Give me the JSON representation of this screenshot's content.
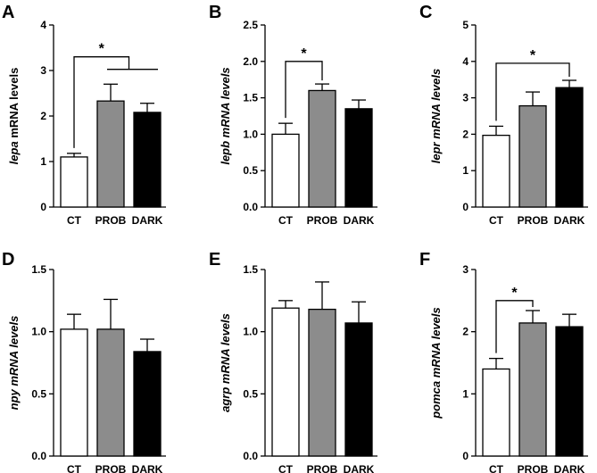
{
  "chart_data": [
    {
      "panel": "A",
      "type": "bar",
      "ylabel_italic": "lepa",
      "ylabel_rest": " mRNA levels",
      "categories": [
        "CT",
        "PROB",
        "DARK"
      ],
      "values": [
        1.1,
        2.33,
        2.08
      ],
      "errors": [
        0.08,
        0.37,
        0.2
      ],
      "colors": [
        "#ffffff",
        "#8c8c8c",
        "#000000"
      ],
      "ylim": [
        0,
        4
      ],
      "yticks": [
        "0",
        "1",
        "2",
        "3",
        "4"
      ],
      "significance": [
        {
          "type": "one-vs-group",
          "from": 0,
          "to": [
            1,
            2
          ],
          "y": 3.3,
          "label": "*"
        }
      ]
    },
    {
      "panel": "B",
      "type": "bar",
      "ylabel_italic": "lepb mRNA levels",
      "ylabel_rest": "",
      "categories": [
        "CT",
        "PROB",
        "DARK"
      ],
      "values": [
        1.0,
        1.6,
        1.35
      ],
      "errors": [
        0.15,
        0.09,
        0.12
      ],
      "colors": [
        "#ffffff",
        "#8c8c8c",
        "#000000"
      ],
      "ylim": [
        0,
        2.5
      ],
      "yticks": [
        "0.0",
        "0.5",
        "1.0",
        "1.5",
        "2.0",
        "2.5"
      ],
      "significance": [
        {
          "type": "pair",
          "from": 0,
          "to": 1,
          "y": 2.0,
          "label": "*"
        }
      ]
    },
    {
      "panel": "C",
      "type": "bar",
      "ylabel_italic": "lepr mRNA levels",
      "ylabel_rest": "",
      "categories": [
        "CT",
        "PROB",
        "DARK"
      ],
      "values": [
        1.97,
        2.78,
        3.28
      ],
      "errors": [
        0.25,
        0.38,
        0.2
      ],
      "colors": [
        "#ffffff",
        "#8c8c8c",
        "#000000"
      ],
      "ylim": [
        0,
        5
      ],
      "yticks": [
        "0",
        "1",
        "2",
        "3",
        "4",
        "5"
      ],
      "significance": [
        {
          "type": "pair",
          "from": 0,
          "to": 2,
          "y": 3.95,
          "label": "*"
        }
      ]
    },
    {
      "panel": "D",
      "type": "bar",
      "ylabel_italic": "npy mRNA levels",
      "ylabel_rest": "",
      "categories": [
        "CT",
        "PROB",
        "DARK"
      ],
      "values": [
        1.02,
        1.02,
        0.84
      ],
      "errors": [
        0.12,
        0.24,
        0.1
      ],
      "colors": [
        "#ffffff",
        "#8c8c8c",
        "#000000"
      ],
      "ylim": [
        0,
        1.5
      ],
      "yticks": [
        "0.0",
        "0.5",
        "1.0",
        "1.5"
      ],
      "significance": []
    },
    {
      "panel": "E",
      "type": "bar",
      "ylabel_italic": "agrp mRNA levels",
      "ylabel_rest": "",
      "categories": [
        "CT",
        "PROB",
        "DARK"
      ],
      "values": [
        1.19,
        1.18,
        1.07
      ],
      "errors": [
        0.06,
        0.22,
        0.17
      ],
      "colors": [
        "#ffffff",
        "#8c8c8c",
        "#000000"
      ],
      "ylim": [
        0,
        1.5
      ],
      "yticks": [
        "0.0",
        "0.5",
        "1.0",
        "1.5"
      ],
      "significance": []
    },
    {
      "panel": "F",
      "type": "bar",
      "ylabel_italic": "pomca mRNA levels",
      "ylabel_rest": "",
      "categories": [
        "CT",
        "PROB",
        "DARK"
      ],
      "values": [
        1.4,
        2.14,
        2.08
      ],
      "errors": [
        0.17,
        0.2,
        0.2
      ],
      "colors": [
        "#ffffff",
        "#8c8c8c",
        "#000000"
      ],
      "ylim": [
        0,
        3
      ],
      "yticks": [
        "0",
        "1",
        "2",
        "3"
      ],
      "significance": [
        {
          "type": "pair",
          "from": 0,
          "to": 1,
          "y": 2.5,
          "label": "*"
        }
      ]
    }
  ]
}
